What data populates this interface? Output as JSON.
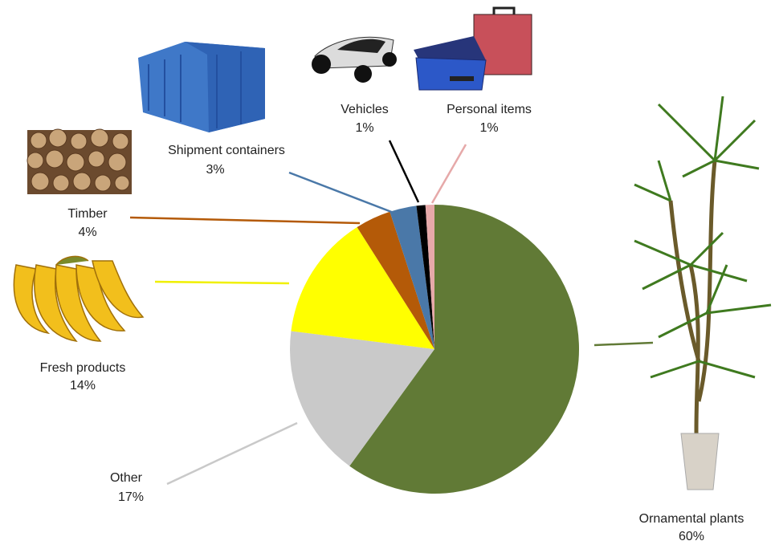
{
  "chart_data": {
    "type": "pie",
    "categories": [
      "Ornamental plants",
      "Other",
      "Fresh products",
      "Timber",
      "Shipment containers",
      "Vehicles",
      "Personal items"
    ],
    "values": [
      60,
      17,
      14,
      4,
      3,
      1,
      1
    ],
    "value_labels": [
      "60%",
      "17%",
      "14%",
      "4%",
      "3%",
      "1%",
      "1%"
    ],
    "colors": [
      "#617a36",
      "#c9c9c9",
      "#ffff00",
      "#b45a08",
      "#4a78a8",
      "#000000",
      "#e6a9a9"
    ]
  }
}
